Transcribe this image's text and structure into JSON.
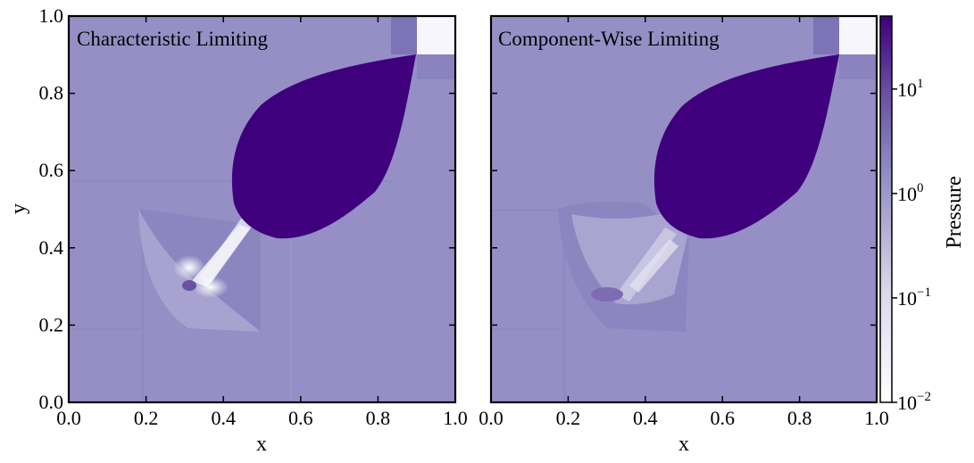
{
  "chart_data": [
    {
      "type": "heatmap",
      "title": "Characteristic Limiting",
      "xlabel": "x",
      "ylabel": "y",
      "xlim": [
        0.0,
        1.0
      ],
      "ylim": [
        0.0,
        1.0
      ],
      "xticks": [
        "0.0",
        "0.2",
        "0.4",
        "0.6",
        "0.8",
        "1.0"
      ],
      "yticks": [
        "0.0",
        "0.2",
        "0.4",
        "0.6",
        "0.8",
        "1.0"
      ]
    },
    {
      "type": "heatmap",
      "title": "Component-Wise Limiting",
      "xlabel": "x",
      "ylabel": "",
      "xlim": [
        0.0,
        1.0
      ],
      "ylim": [
        0.0,
        1.0
      ],
      "xticks": [
        "0.0",
        "0.2",
        "0.4",
        "0.6",
        "0.8",
        "1.0"
      ],
      "yticks": []
    }
  ],
  "colorbar": {
    "label": "Pressure",
    "scale": "log",
    "range": [
      0.01,
      50
    ],
    "ticks": [
      {
        "base": "10",
        "exp": "−2",
        "value": 0.01
      },
      {
        "base": "10",
        "exp": "−1",
        "value": 0.1
      },
      {
        "base": "10",
        "exp": "0",
        "value": 1
      },
      {
        "base": "10",
        "exp": "1",
        "value": 10
      }
    ],
    "colors": [
      "#ffffff",
      "#d9d5ea",
      "#958fc5",
      "#6a51a3",
      "#3f007d"
    ]
  }
}
